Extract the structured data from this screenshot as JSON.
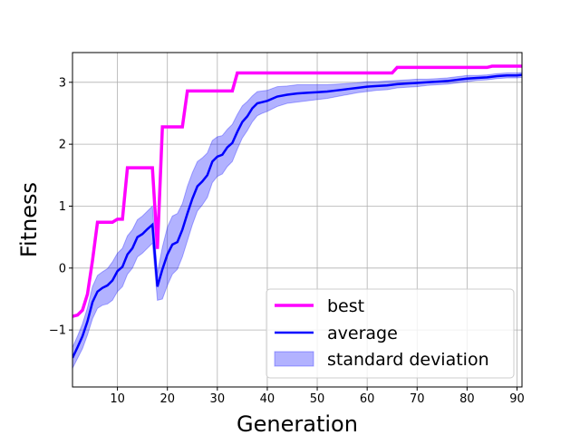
{
  "chart_data": {
    "type": "line",
    "xlabel": "Generation",
    "ylabel": "Fitness",
    "xlim": [
      1,
      91
    ],
    "ylim": [
      -1.92,
      3.48
    ],
    "xticks": [
      10,
      20,
      30,
      40,
      50,
      60,
      70,
      80,
      90
    ],
    "yticks": [
      -1,
      0,
      1,
      2,
      3
    ],
    "grid": true,
    "legend_position": "lower-right",
    "series": [
      {
        "name": "best",
        "color": "#ff00ff",
        "x": [
          1,
          2,
          3,
          4,
          5,
          6,
          7,
          8,
          9,
          10,
          11,
          12,
          13,
          17,
          18,
          19,
          23,
          24,
          33,
          34,
          65,
          66,
          84,
          85,
          91
        ],
        "y": [
          -0.78,
          -0.76,
          -0.68,
          -0.42,
          0.12,
          0.74,
          0.74,
          0.74,
          0.74,
          0.79,
          0.79,
          1.62,
          1.62,
          1.62,
          0.31,
          2.28,
          2.28,
          2.86,
          2.86,
          3.15,
          3.15,
          3.24,
          3.24,
          3.26,
          3.26
        ]
      },
      {
        "name": "average",
        "color": "#0000ff",
        "x": [
          1,
          2,
          3,
          4,
          5,
          6,
          7,
          8,
          9,
          10,
          11,
          12,
          13,
          14,
          15,
          16,
          17,
          18,
          19,
          20,
          21,
          22,
          23,
          24,
          25,
          26,
          27,
          28,
          29,
          30,
          31,
          32,
          33,
          34,
          35,
          36,
          37,
          38,
          39,
          40,
          42,
          44,
          46,
          48,
          50,
          52,
          54,
          56,
          58,
          60,
          62,
          64,
          66,
          68,
          70,
          72,
          74,
          76,
          78,
          80,
          82,
          84,
          86,
          88,
          90,
          91
        ],
        "y": [
          -1.45,
          -1.28,
          -1.1,
          -0.86,
          -0.55,
          -0.38,
          -0.32,
          -0.28,
          -0.2,
          -0.05,
          0.02,
          0.22,
          0.32,
          0.5,
          0.55,
          0.63,
          0.7,
          -0.3,
          -0.02,
          0.22,
          0.38,
          0.42,
          0.62,
          0.88,
          1.12,
          1.32,
          1.4,
          1.5,
          1.72,
          1.8,
          1.83,
          1.95,
          2.02,
          2.2,
          2.36,
          2.45,
          2.58,
          2.66,
          2.68,
          2.7,
          2.77,
          2.8,
          2.82,
          2.83,
          2.84,
          2.85,
          2.87,
          2.89,
          2.91,
          2.93,
          2.94,
          2.95,
          2.97,
          2.98,
          2.99,
          3.0,
          3.01,
          3.02,
          3.04,
          3.06,
          3.07,
          3.08,
          3.1,
          3.11,
          3.11,
          3.12
        ]
      }
    ],
    "band": {
      "name": "standard deviation",
      "color": "#0000ff",
      "opacity": 0.3,
      "x": [
        1,
        2,
        3,
        4,
        5,
        6,
        7,
        8,
        9,
        10,
        11,
        12,
        13,
        14,
        15,
        16,
        17,
        18,
        19,
        20,
        21,
        22,
        23,
        24,
        25,
        26,
        27,
        28,
        29,
        30,
        31,
        32,
        33,
        34,
        35,
        36,
        37,
        38,
        39,
        40,
        42,
        44,
        46,
        48,
        50,
        52,
        54,
        56,
        58,
        60,
        62,
        64,
        66,
        68,
        70,
        72,
        74,
        76,
        78,
        80,
        82,
        84,
        86,
        88,
        90,
        91
      ],
      "lower": [
        -1.62,
        -1.46,
        -1.3,
        -1.08,
        -0.82,
        -0.65,
        -0.6,
        -0.58,
        -0.52,
        -0.38,
        -0.3,
        -0.1,
        0.0,
        0.18,
        0.24,
        0.32,
        0.4,
        -0.52,
        -0.5,
        -0.28,
        -0.1,
        -0.02,
        0.18,
        0.44,
        0.7,
        0.92,
        1.02,
        1.14,
        1.38,
        1.48,
        1.52,
        1.64,
        1.72,
        1.92,
        2.1,
        2.22,
        2.36,
        2.46,
        2.5,
        2.53,
        2.61,
        2.66,
        2.68,
        2.7,
        2.72,
        2.74,
        2.77,
        2.8,
        2.83,
        2.85,
        2.87,
        2.88,
        2.91,
        2.92,
        2.93,
        2.95,
        2.96,
        2.97,
        2.99,
        3.01,
        3.03,
        3.04,
        3.06,
        3.07,
        3.07,
        3.08
      ],
      "upper": [
        -1.28,
        -1.1,
        -0.9,
        -0.64,
        -0.3,
        -0.12,
        -0.06,
        -0.01,
        0.1,
        0.24,
        0.32,
        0.52,
        0.62,
        0.78,
        0.84,
        0.92,
        1.0,
        -0.08,
        0.34,
        0.66,
        0.84,
        0.88,
        1.04,
        1.32,
        1.54,
        1.72,
        1.78,
        1.86,
        2.06,
        2.12,
        2.14,
        2.24,
        2.32,
        2.48,
        2.62,
        2.69,
        2.78,
        2.85,
        2.86,
        2.87,
        2.93,
        2.94,
        2.96,
        2.96,
        2.96,
        2.96,
        2.97,
        2.98,
        2.99,
        3.01,
        3.01,
        3.02,
        3.03,
        3.04,
        3.05,
        3.05,
        3.06,
        3.07,
        3.09,
        3.11,
        3.11,
        3.12,
        3.14,
        3.15,
        3.15,
        3.16
      ]
    }
  }
}
